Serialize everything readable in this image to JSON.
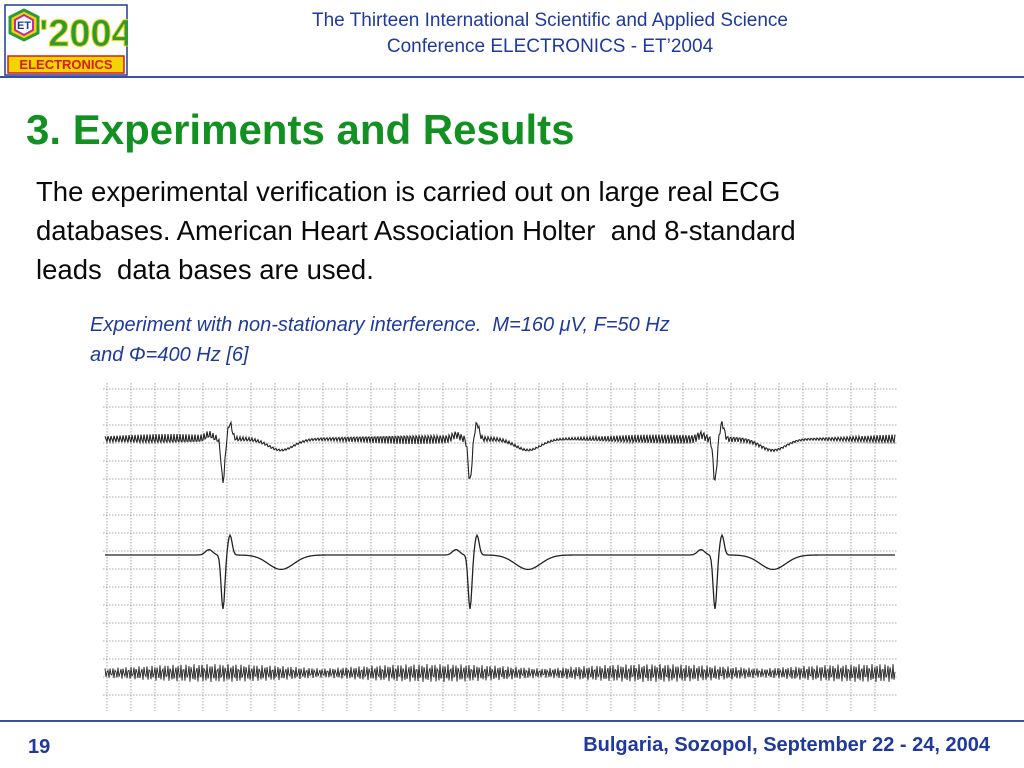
{
  "header": {
    "logo_year": "'2004",
    "logo_initials": "ET",
    "logo_label": "ELECTRONICS",
    "title_line1": "The Thirteen International Scientific and Applied Science",
    "title_line2": "Conference ELECTRONICS - ET’2004"
  },
  "slide": {
    "title": "3. Experiments and Results",
    "body_line1": "The experimental verification is carried out on large real ECG",
    "body_line2": "databases. American Heart Association Holter  and 8-standard",
    "body_line3": "leads  data bases are used.",
    "caption_line1": "Experiment with non-stationary interference.  M=160 μV, F=50 Hz",
    "caption_line2": "and Φ=400 Hz [6]"
  },
  "footer": {
    "page_number": "19",
    "location": "Bulgaria, Sozopol, September 22 - 24, 2004"
  },
  "colors": {
    "title_green": "#129021",
    "header_blue": "#1f3a9c",
    "logo_red": "#d81c1c",
    "logo_yellow": "#f2d400",
    "logo_green": "#2a9a3a"
  }
}
